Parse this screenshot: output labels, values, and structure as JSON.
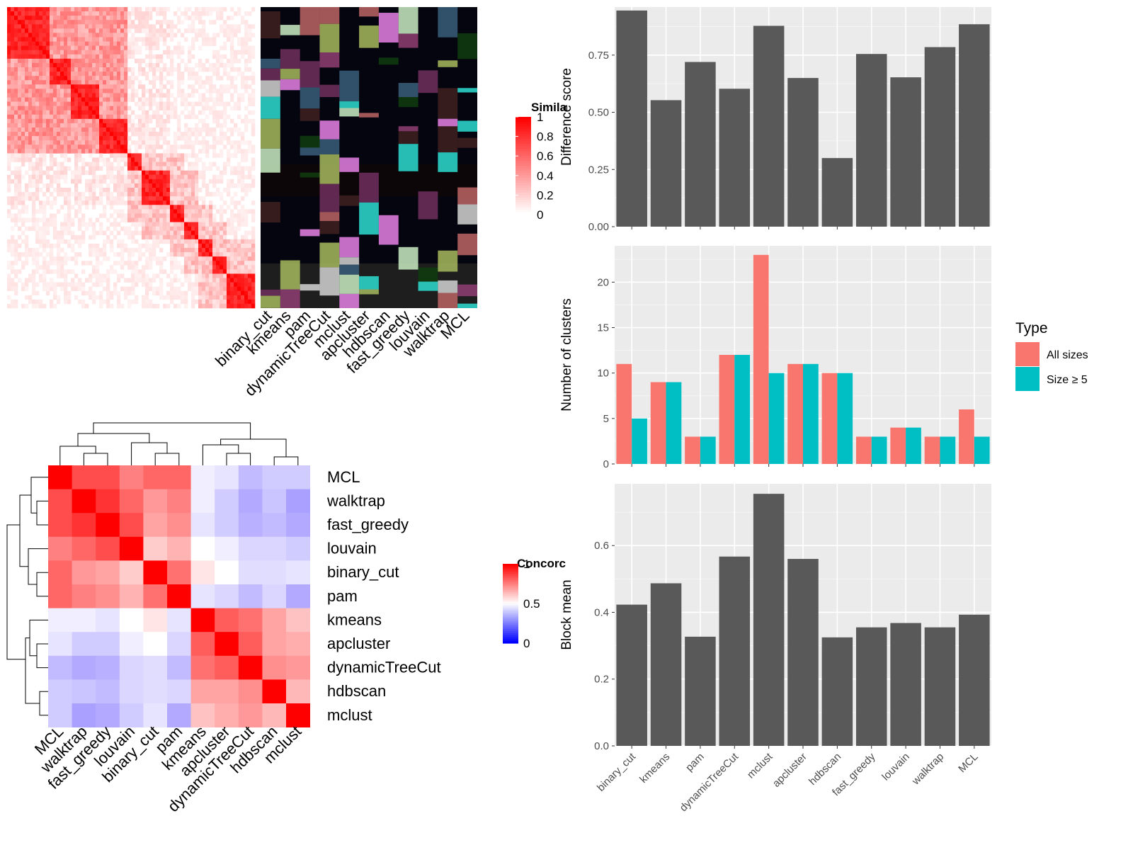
{
  "similarity_panel": {
    "legend_title": "Simila",
    "legend_ticks": [
      "1",
      "0.8",
      "0.6",
      "0.4",
      "0.2",
      "0"
    ],
    "colors": {
      "high": "#ff0000",
      "low": "#ffffff"
    },
    "method_labels": [
      "binary_cut",
      "kmeans",
      "pam",
      "dynamicTreeCut",
      "mclust",
      "apcluster",
      "hdbscan",
      "fast_greedy",
      "louvain",
      "walktrap",
      "MCL"
    ]
  },
  "concordance_panel": {
    "legend_title": "Concorc",
    "legend_ticks": [
      "1",
      "0.5",
      "0"
    ],
    "colors": {
      "high": "#ff0000",
      "mid": "#ffffff",
      "low": "#0000ff"
    },
    "row_labels": [
      "MCL",
      "walktrap",
      "fast_greedy",
      "louvain",
      "binary_cut",
      "pam",
      "kmeans",
      "apcluster",
      "dynamicTreeCut",
      "hdbscan",
      "mclust"
    ],
    "col_labels": [
      "MCL",
      "walktrap",
      "fast_greedy",
      "louvain",
      "binary_cut",
      "pam",
      "kmeans",
      "apcluster",
      "dynamicTreeCut",
      "hdbscan",
      "mclust"
    ]
  },
  "chart_data": [
    {
      "type": "heatmap",
      "title": "",
      "rows": [
        "MCL",
        "walktrap",
        "fast_greedy",
        "louvain",
        "binary_cut",
        "pam",
        "kmeans",
        "apcluster",
        "dynamicTreeCut",
        "hdbscan",
        "mclust"
      ],
      "cols": [
        "MCL",
        "walktrap",
        "fast_greedy",
        "louvain",
        "binary_cut",
        "pam",
        "kmeans",
        "apcluster",
        "dynamicTreeCut",
        "hdbscan",
        "mclust"
      ],
      "values": [
        [
          1.0,
          0.85,
          0.85,
          0.75,
          0.8,
          0.8,
          0.45,
          0.42,
          0.3,
          0.35,
          0.35
        ],
        [
          0.85,
          1.0,
          0.9,
          0.8,
          0.7,
          0.75,
          0.45,
          0.35,
          0.25,
          0.33,
          0.22
        ],
        [
          0.85,
          0.9,
          1.0,
          0.85,
          0.68,
          0.72,
          0.42,
          0.35,
          0.27,
          0.3,
          0.25
        ],
        [
          0.75,
          0.8,
          0.85,
          1.0,
          0.6,
          0.65,
          0.5,
          0.45,
          0.38,
          0.38,
          0.35
        ],
        [
          0.8,
          0.7,
          0.68,
          0.6,
          1.0,
          0.78,
          0.55,
          0.5,
          0.4,
          0.4,
          0.42
        ],
        [
          0.8,
          0.75,
          0.72,
          0.65,
          0.78,
          1.0,
          0.42,
          0.38,
          0.3,
          0.38,
          0.25
        ],
        [
          0.45,
          0.45,
          0.42,
          0.5,
          0.55,
          0.42,
          1.0,
          0.82,
          0.78,
          0.68,
          0.62
        ],
        [
          0.42,
          0.35,
          0.35,
          0.45,
          0.5,
          0.38,
          0.82,
          1.0,
          0.82,
          0.68,
          0.66
        ],
        [
          0.3,
          0.25,
          0.27,
          0.38,
          0.4,
          0.3,
          0.78,
          0.82,
          1.0,
          0.72,
          0.7
        ],
        [
          0.35,
          0.33,
          0.3,
          0.38,
          0.4,
          0.38,
          0.68,
          0.68,
          0.72,
          1.0,
          0.64
        ],
        [
          0.35,
          0.22,
          0.25,
          0.35,
          0.42,
          0.25,
          0.62,
          0.66,
          0.7,
          0.64,
          1.0
        ]
      ],
      "legend_title": "Concorc",
      "legend_range": [
        0,
        1
      ]
    },
    {
      "type": "bar",
      "categories": [
        "binary_cut",
        "kmeans",
        "pam",
        "dynamicTreeCut",
        "mclust",
        "apcluster",
        "hdbscan",
        "fast_greedy",
        "louvain",
        "walktrap",
        "MCL"
      ],
      "values": [
        0.945,
        0.553,
        0.72,
        0.603,
        0.878,
        0.65,
        0.3,
        0.755,
        0.653,
        0.785,
        0.885
      ],
      "xlabel": "",
      "ylabel": "Difference score",
      "yticks": [
        "0.00",
        "0.25",
        "0.50",
        "0.75"
      ],
      "ylim": [
        0,
        0.96
      ],
      "grid": true,
      "color": "#595959"
    },
    {
      "type": "bar",
      "categories": [
        "binary_cut",
        "kmeans",
        "pam",
        "dynamicTreeCut",
        "mclust",
        "apcluster",
        "hdbscan",
        "fast_greedy",
        "louvain",
        "walktrap",
        "MCL"
      ],
      "series": [
        {
          "name": "All sizes",
          "color": "#f8766d",
          "values": [
            11,
            9,
            3,
            12,
            23,
            11,
            10,
            3,
            4,
            3,
            6
          ]
        },
        {
          "name": "Size ≥ 5",
          "color": "#00bfc4",
          "values": [
            5,
            9,
            3,
            12,
            10,
            11,
            10,
            3,
            4,
            3,
            3
          ]
        }
      ],
      "xlabel": "",
      "ylabel": "Number of clusters",
      "yticks": [
        "0",
        "5",
        "10",
        "15",
        "20"
      ],
      "ylim": [
        0,
        24
      ],
      "legend_title": "Type",
      "legend_position": "right",
      "grid": true
    },
    {
      "type": "bar",
      "categories": [
        "binary_cut",
        "kmeans",
        "pam",
        "dynamicTreeCut",
        "mclust",
        "apcluster",
        "hdbscan",
        "fast_greedy",
        "louvain",
        "walktrap",
        "MCL"
      ],
      "values": [
        0.423,
        0.487,
        0.327,
        0.567,
        0.755,
        0.56,
        0.325,
        0.355,
        0.368,
        0.355,
        0.393
      ],
      "xlabel": "",
      "ylabel": "Block mean",
      "yticks": [
        "0.0",
        "0.2",
        "0.4",
        "0.6"
      ],
      "ylim": [
        0,
        0.785
      ],
      "grid": true,
      "color": "#595959"
    }
  ]
}
